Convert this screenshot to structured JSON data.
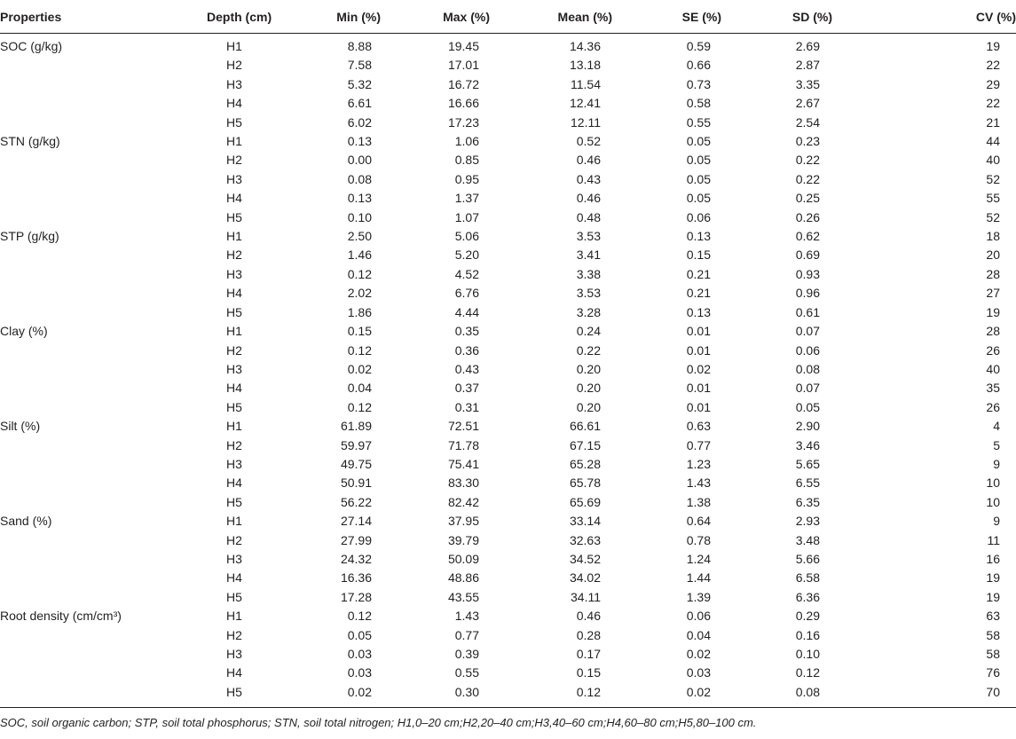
{
  "headers": [
    "Properties",
    "Depth (cm)",
    "Min (%)",
    "Max (%)",
    "Mean (%)",
    "SE (%)",
    "SD (%)",
    "CV (%)"
  ],
  "groups": [
    {
      "property": "SOC (g/kg)",
      "rows": [
        [
          "H1",
          "8.88",
          "19.45",
          "14.36",
          "0.59",
          "2.69",
          "19"
        ],
        [
          "H2",
          "7.58",
          "17.01",
          "13.18",
          "0.66",
          "2.87",
          "22"
        ],
        [
          "H3",
          "5.32",
          "16.72",
          "11.54",
          "0.73",
          "3.35",
          "29"
        ],
        [
          "H4",
          "6.61",
          "16.66",
          "12.41",
          "0.58",
          "2.67",
          "22"
        ],
        [
          "H5",
          "6.02",
          "17.23",
          "12.11",
          "0.55",
          "2.54",
          "21"
        ]
      ]
    },
    {
      "property": "STN (g/kg)",
      "rows": [
        [
          "H1",
          "0.13",
          "1.06",
          "0.52",
          "0.05",
          "0.23",
          "44"
        ],
        [
          "H2",
          "0.00",
          "0.85",
          "0.46",
          "0.05",
          "0.22",
          "40"
        ],
        [
          "H3",
          "0.08",
          "0.95",
          "0.43",
          "0.05",
          "0.22",
          "52"
        ],
        [
          "H4",
          "0.13",
          "1.37",
          "0.46",
          "0.05",
          "0.25",
          "55"
        ],
        [
          "H5",
          "0.10",
          "1.07",
          "0.48",
          "0.06",
          "0.26",
          "52"
        ]
      ]
    },
    {
      "property": "STP (g/kg)",
      "rows": [
        [
          "H1",
          "2.50",
          "5.06",
          "3.53",
          "0.13",
          "0.62",
          "18"
        ],
        [
          "H2",
          "1.46",
          "5.20",
          "3.41",
          "0.15",
          "0.69",
          "20"
        ],
        [
          "H3",
          "0.12",
          "4.52",
          "3.38",
          "0.21",
          "0.93",
          "28"
        ],
        [
          "H4",
          "2.02",
          "6.76",
          "3.53",
          "0.21",
          "0.96",
          "27"
        ],
        [
          "H5",
          "1.86",
          "4.44",
          "3.28",
          "0.13",
          "0.61",
          "19"
        ]
      ]
    },
    {
      "property": "Clay (%)",
      "rows": [
        [
          "H1",
          "0.15",
          "0.35",
          "0.24",
          "0.01",
          "0.07",
          "28"
        ],
        [
          "H2",
          "0.12",
          "0.36",
          "0.22",
          "0.01",
          "0.06",
          "26"
        ],
        [
          "H3",
          "0.02",
          "0.43",
          "0.20",
          "0.02",
          "0.08",
          "40"
        ],
        [
          "H4",
          "0.04",
          "0.37",
          "0.20",
          "0.01",
          "0.07",
          "35"
        ],
        [
          "H5",
          "0.12",
          "0.31",
          "0.20",
          "0.01",
          "0.05",
          "26"
        ]
      ]
    },
    {
      "property": "Silt (%)",
      "rows": [
        [
          "H1",
          "61.89",
          "72.51",
          "66.61",
          "0.63",
          "2.90",
          "4"
        ],
        [
          "H2",
          "59.97",
          "71.78",
          "67.15",
          "0.77",
          "3.46",
          "5"
        ],
        [
          "H3",
          "49.75",
          "75.41",
          "65.28",
          "1.23",
          "5.65",
          "9"
        ],
        [
          "H4",
          "50.91",
          "83.30",
          "65.78",
          "1.43",
          "6.55",
          "10"
        ],
        [
          "H5",
          "56.22",
          "82.42",
          "65.69",
          "1.38",
          "6.35",
          "10"
        ]
      ]
    },
    {
      "property": "Sand (%)",
      "rows": [
        [
          "H1",
          "27.14",
          "37.95",
          "33.14",
          "0.64",
          "2.93",
          "9"
        ],
        [
          "H2",
          "27.99",
          "39.79",
          "32.63",
          "0.78",
          "3.48",
          "11"
        ],
        [
          "H3",
          "24.32",
          "50.09",
          "34.52",
          "1.24",
          "5.66",
          "16"
        ],
        [
          "H4",
          "16.36",
          "48.86",
          "34.02",
          "1.44",
          "6.58",
          "19"
        ],
        [
          "H5",
          "17.28",
          "43.55",
          "34.11",
          "1.39",
          "6.36",
          "19"
        ]
      ]
    },
    {
      "property": "Root density (cm/cm³)",
      "rows": [
        [
          "H1",
          "0.12",
          "1.43",
          "0.46",
          "0.06",
          "0.29",
          "63"
        ],
        [
          "H2",
          "0.05",
          "0.77",
          "0.28",
          "0.04",
          "0.16",
          "58"
        ],
        [
          "H3",
          "0.03",
          "0.39",
          "0.17",
          "0.02",
          "0.10",
          "58"
        ],
        [
          "H4",
          "0.03",
          "0.55",
          "0.15",
          "0.03",
          "0.12",
          "76"
        ],
        [
          "H5",
          "0.02",
          "0.30",
          "0.12",
          "0.02",
          "0.08",
          "70"
        ]
      ]
    }
  ],
  "footnote": "SOC, soil organic carbon; STP, soil total phosphorus; STN, soil total nitrogen; H1,0–20 cm;H2,20–40 cm;H3,40–60 cm;H4,60–80 cm;H5,80–100 cm."
}
